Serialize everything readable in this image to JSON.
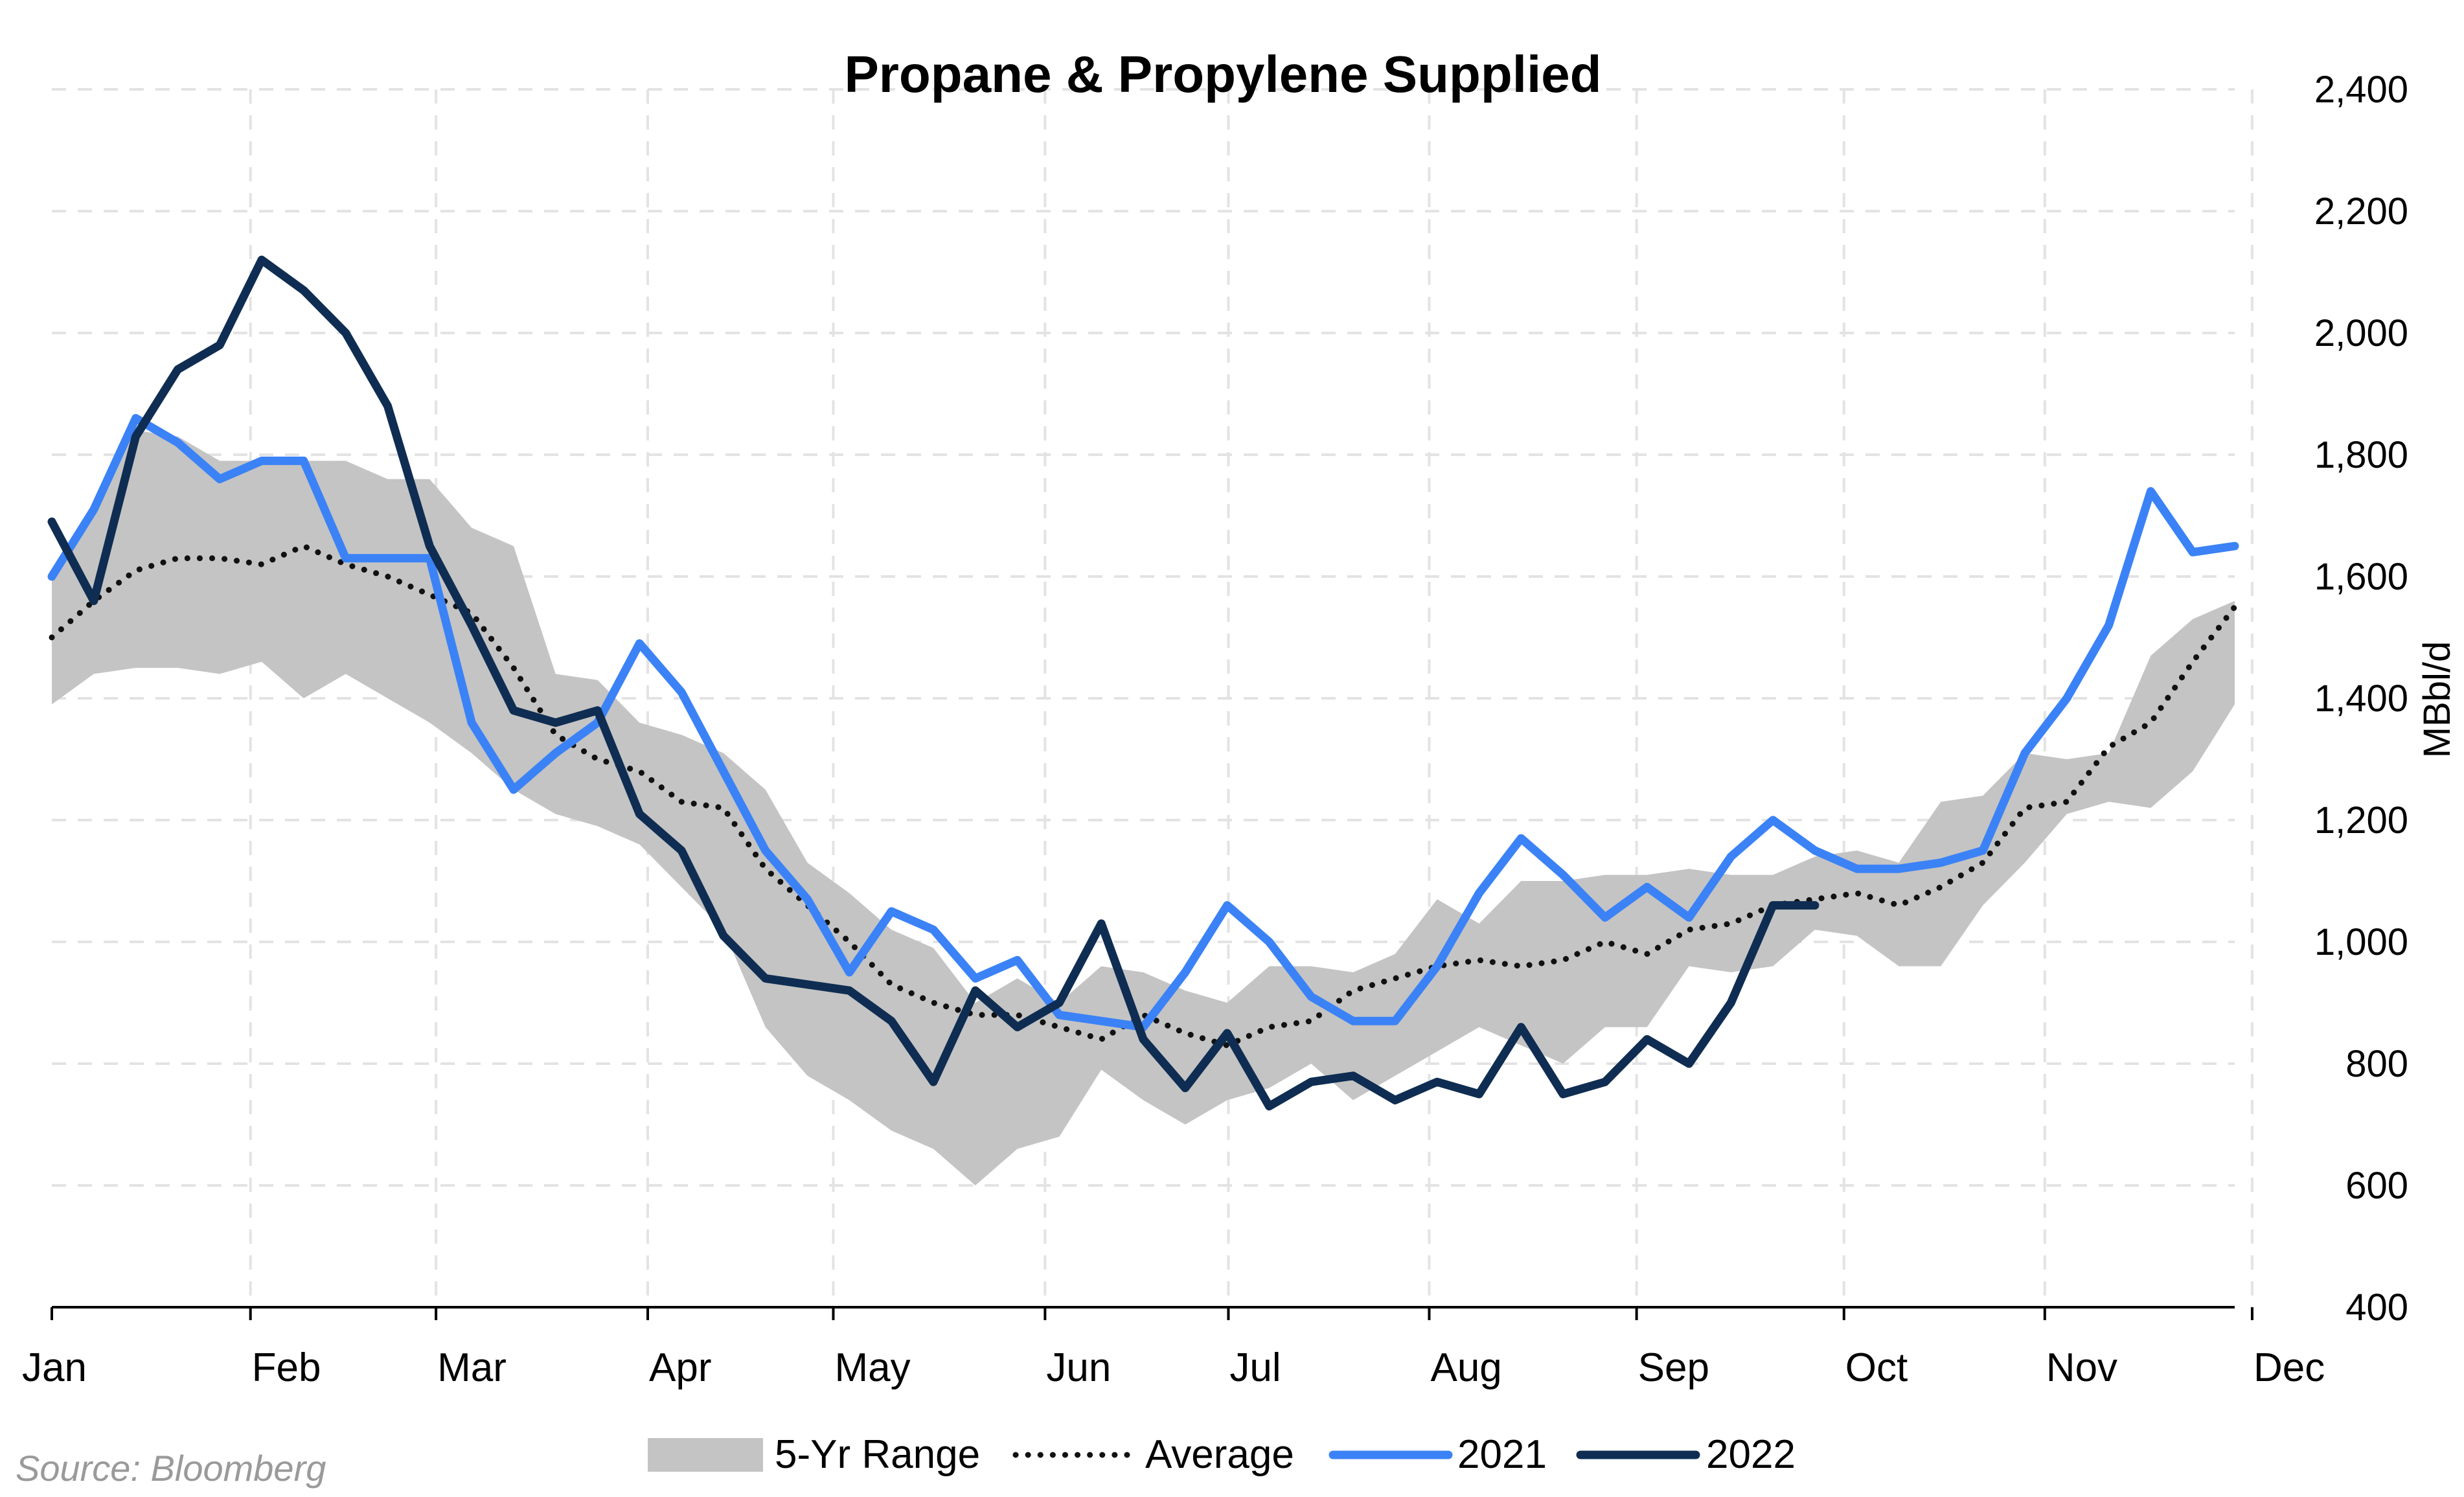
{
  "chart_data": {
    "type": "line",
    "title": "Propane & Propylene Supplied",
    "ylabel": "MBbl/d",
    "ylim": [
      400,
      2400
    ],
    "y_ticks": [
      "400",
      "600",
      "800",
      "1,000",
      "1,200",
      "1,400",
      "1,600",
      "1,800",
      "2,000",
      "2,200",
      "2,400"
    ],
    "y_axis_side": "right",
    "grid": true,
    "x_ticks": [
      "Jan",
      "Feb",
      "Mar",
      "Apr",
      "May",
      "Jun",
      "Jul",
      "Aug",
      "Sep",
      "Oct",
      "Nov",
      "Dec"
    ],
    "weeks": 53,
    "source": "Source: Bloomberg",
    "legend_position": "bottom",
    "series": [
      {
        "name": "5-Yr Range",
        "kind": "range",
        "color": "#c4c4c4",
        "low": [
          1390,
          1440,
          1450,
          1450,
          1440,
          1460,
          1400,
          1440,
          1400,
          1360,
          1310,
          1250,
          1210,
          1190,
          1160,
          1090,
          1020,
          860,
          780,
          740,
          690,
          660,
          600,
          660,
          680,
          790,
          740,
          700,
          740,
          760,
          800,
          740,
          780,
          820,
          860,
          830,
          800,
          860,
          860,
          960,
          950,
          960,
          1020,
          1010,
          960,
          960,
          1060,
          1130,
          1210,
          1230,
          1220,
          1280,
          1390
        ],
        "high": [
          1610,
          1720,
          1840,
          1830,
          1790,
          1790,
          1790,
          1790,
          1760,
          1760,
          1680,
          1650,
          1440,
          1430,
          1360,
          1340,
          1310,
          1250,
          1130,
          1080,
          1020,
          990,
          900,
          940,
          900,
          960,
          950,
          920,
          900,
          960,
          960,
          950,
          980,
          1070,
          1030,
          1100,
          1100,
          1110,
          1110,
          1120,
          1110,
          1110,
          1140,
          1150,
          1130,
          1230,
          1240,
          1310,
          1300,
          1310,
          1470,
          1530,
          1560
        ]
      },
      {
        "name": "Average",
        "kind": "line",
        "style": "dotted",
        "color": "#111111",
        "values": [
          1500,
          1560,
          1610,
          1630,
          1630,
          1620,
          1650,
          1620,
          1600,
          1570,
          1540,
          1450,
          1340,
          1300,
          1280,
          1230,
          1220,
          1120,
          1060,
          1000,
          930,
          900,
          880,
          880,
          860,
          840,
          880,
          850,
          830,
          860,
          870,
          920,
          940,
          960,
          970,
          960,
          970,
          1000,
          980,
          1020,
          1030,
          1060,
          1070,
          1080,
          1060,
          1090,
          1130,
          1220,
          1230,
          1320,
          1360,
          1460,
          1550
        ]
      },
      {
        "name": "2021",
        "kind": "line",
        "color": "#3b82f6",
        "values": [
          1600,
          1710,
          1860,
          1820,
          1760,
          1790,
          1790,
          1630,
          1630,
          1630,
          1360,
          1250,
          1310,
          1360,
          1490,
          1410,
          1280,
          1150,
          1070,
          950,
          1050,
          1020,
          940,
          970,
          880,
          870,
          860,
          950,
          1060,
          1000,
          910,
          870,
          870,
          960,
          1080,
          1170,
          1110,
          1040,
          1090,
          1040,
          1140,
          1200,
          1150,
          1120,
          1120,
          1130,
          1150,
          1310,
          1400,
          1520,
          1740,
          1640,
          1650
        ]
      },
      {
        "name": "2022",
        "kind": "line",
        "color": "#0f2d52",
        "values": [
          1690,
          1560,
          1830,
          1940,
          1980,
          2120,
          2070,
          2000,
          1880,
          1650,
          1520,
          1380,
          1360,
          1380,
          1210,
          1150,
          1010,
          940,
          930,
          920,
          870,
          770,
          920,
          860,
          900,
          1030,
          840,
          760,
          850,
          730,
          770,
          780,
          740,
          770,
          750,
          860,
          750,
          770,
          840,
          800,
          900,
          1060,
          1060
        ]
      }
    ]
  }
}
